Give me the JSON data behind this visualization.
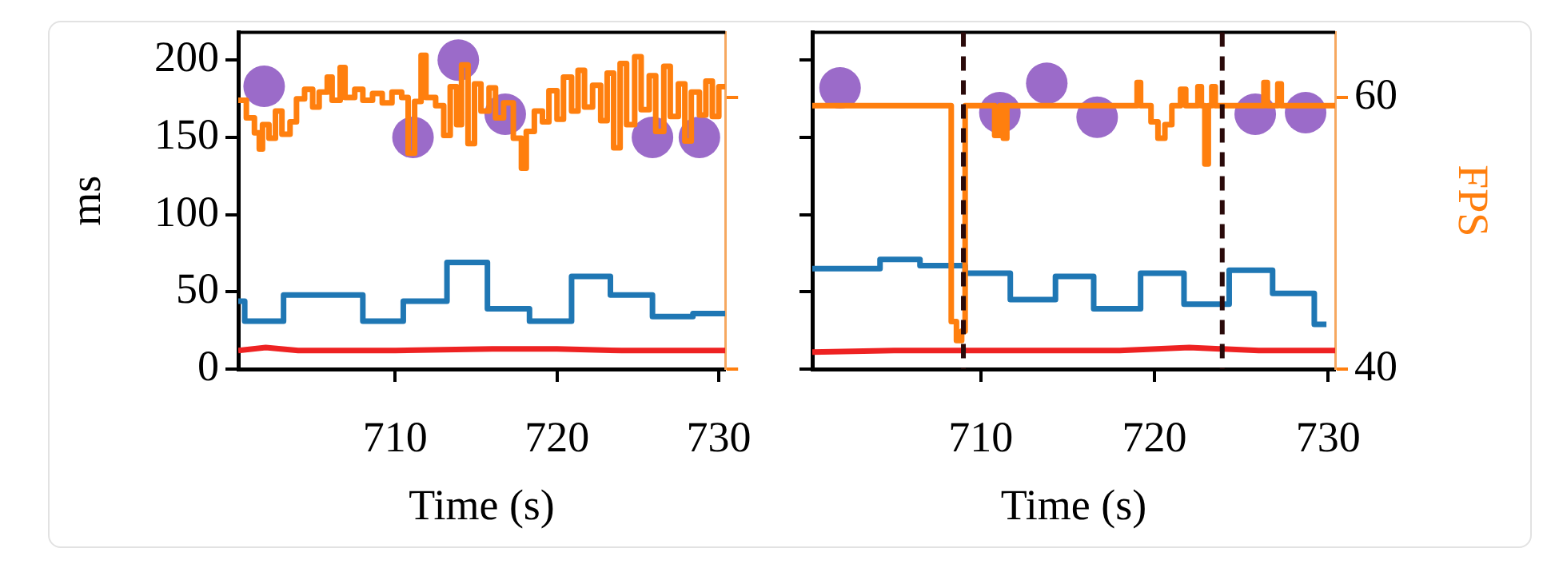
{
  "chart_data": [
    {
      "type": "line",
      "xlabel": "Time (s)",
      "ylabel": "ms",
      "xlim": [
        700.3,
        730.4
      ],
      "xticks": [
        710,
        720,
        730
      ],
      "ylim": [
        0,
        218
      ],
      "yticks": [
        0,
        50,
        100,
        150,
        200
      ],
      "y2lim": [
        40,
        64.8
      ],
      "tick_labels": [
        "x",
        "y"
      ],
      "grid": false,
      "legend": false,
      "series": [
        {
          "type": "line",
          "color": "#ee2222",
          "x": [
            700.3,
            702,
            704,
            710,
            716,
            720,
            724,
            730.4
          ],
          "values": [
            12,
            14,
            12,
            12,
            13,
            13,
            12,
            12
          ]
        },
        {
          "type": "step",
          "color": "#1f77b4",
          "x": [
            700.3,
            700.7,
            703.1,
            708.0,
            710.5,
            713.2,
            715.7,
            718.3,
            720.9,
            723.3,
            725.9,
            728.4,
            730.4
          ],
          "values": [
            44,
            31,
            48,
            31,
            44,
            69,
            39,
            31,
            60,
            48,
            34,
            36,
            36
          ]
        },
        {
          "type": "step",
          "color": "#ff7f0e",
          "axis": "y2",
          "x": [
            700.3,
            700.8,
            701.3,
            701.6,
            701.8,
            702.2,
            702.6,
            703.0,
            703.5,
            703.9,
            704.4,
            704.9,
            705.3,
            705.8,
            706.1,
            706.6,
            706.9,
            707.5,
            708.0,
            708.6,
            709.2,
            709.8,
            710.4,
            710.8,
            711.2,
            711.6,
            711.9,
            712.5,
            713.0,
            713.4,
            713.8,
            714.1,
            714.5,
            714.9,
            715.3,
            715.8,
            716.2,
            716.7,
            717.3,
            717.8,
            718.1,
            718.6,
            719.1,
            719.5,
            720.0,
            720.4,
            720.9,
            721.3,
            721.7,
            722.2,
            722.7,
            723.1,
            723.5,
            723.9,
            724.3,
            724.8,
            725.2,
            725.7,
            726.1,
            726.6,
            727.0,
            727.5,
            727.9,
            728.3,
            728.8,
            729.2,
            729.6,
            730.0,
            730.4
          ],
          "values": [
            59.8,
            58.5,
            57.4,
            56.2,
            58.0,
            57.0,
            59.0,
            57.3,
            58.2,
            59.9,
            60.6,
            59.3,
            60.4,
            61.5,
            59.8,
            62.2,
            60.0,
            60.6,
            59.8,
            60.3,
            59.6,
            60.4,
            60.0,
            55.9,
            59.7,
            63.1,
            60.0,
            59.4,
            57.2,
            60.8,
            58.0,
            62.4,
            56.6,
            61.0,
            59.0,
            60.7,
            58.5,
            59.6,
            57.0,
            54.8,
            57.5,
            59.0,
            58.2,
            60.5,
            58.4,
            61.5,
            59.0,
            62.0,
            59.3,
            60.9,
            58.3,
            61.8,
            56.3,
            62.5,
            58.0,
            63.0,
            59.1,
            61.6,
            57.5,
            62.3,
            58.6,
            61.0,
            56.8,
            60.4,
            58.7,
            61.2,
            58.6,
            60.8,
            60.8
          ]
        },
        {
          "type": "scatter",
          "color": "#9b6bc9",
          "marker": "circle",
          "x": [
            701.9,
            711.1,
            713.9,
            716.8,
            725.9,
            728.8
          ],
          "values": [
            183,
            150,
            200,
            165,
            150,
            150
          ]
        }
      ]
    },
    {
      "type": "line",
      "xlabel": "Time (s)",
      "y2label": "FPS",
      "xlim": [
        700.3,
        730.4
      ],
      "xticks": [
        710,
        720,
        730
      ],
      "ylim": [
        0,
        218
      ],
      "y2lim": [
        40,
        64.8
      ],
      "y2ticks": [
        40,
        60
      ],
      "tick_labels": [
        "x",
        "y2"
      ],
      "grid": false,
      "legend": false,
      "ref_lines": [
        {
          "axis": "x",
          "value": 709.0,
          "color": "#2a0a0a",
          "line_style": "dashed"
        },
        {
          "axis": "x",
          "value": 723.9,
          "color": "#2a0a0a",
          "line_style": "dashed"
        }
      ],
      "series": [
        {
          "type": "line",
          "color": "#ee2222",
          "x": [
            700.3,
            705,
            710,
            718,
            722,
            726,
            730.4
          ],
          "values": [
            11,
            12,
            12,
            12,
            14,
            12,
            12
          ]
        },
        {
          "type": "step",
          "color": "#1f77b4",
          "x": [
            700.3,
            704.2,
            706.5,
            709.1,
            711.7,
            714.3,
            716.5,
            719.2,
            721.7,
            724.3,
            726.8,
            729.2,
            729.9
          ],
          "values": [
            65,
            71,
            67,
            62,
            45,
            60,
            39,
            62,
            42,
            64,
            49,
            29,
            29
          ]
        },
        {
          "type": "step",
          "color": "#ff7f0e",
          "axis": "y2",
          "x": [
            700.3,
            708.3,
            708.6,
            708.9,
            709.1,
            710.8,
            711.1,
            711.3,
            711.5,
            719.0,
            719.2,
            719.8,
            720.2,
            720.6,
            721.0,
            721.5,
            721.8,
            722.5,
            722.7,
            722.9,
            723.1,
            723.3,
            723.5,
            726.3,
            726.5,
            727.1,
            727.3,
            730.4
          ],
          "values": [
            59.4,
            43.5,
            42.1,
            42.8,
            59.4,
            57.2,
            59.4,
            57.0,
            59.4,
            61.1,
            59.4,
            58.2,
            57.0,
            58.0,
            59.4,
            60.6,
            59.4,
            60.8,
            59.4,
            55.1,
            59.4,
            60.8,
            59.4,
            61.1,
            59.4,
            61.0,
            59.4,
            59.4
          ]
        },
        {
          "type": "scatter",
          "color": "#9b6bc9",
          "marker": "circle",
          "x": [
            701.9,
            711.1,
            713.8,
            716.7,
            725.8,
            728.7
          ],
          "values": [
            182,
            166,
            185,
            163,
            165,
            166
          ]
        }
      ]
    }
  ]
}
